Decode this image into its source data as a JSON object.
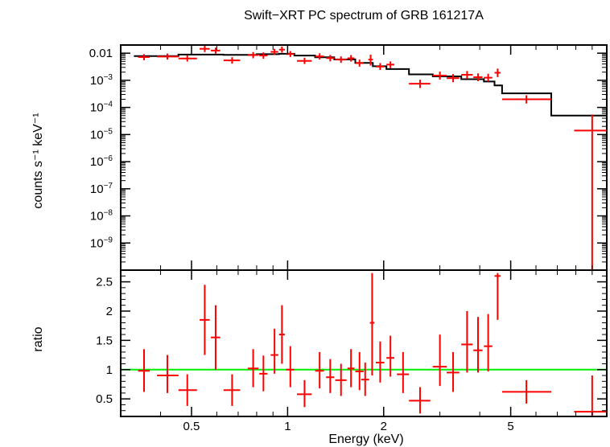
{
  "chart_data": [
    {
      "panel": "spectrum",
      "type": "scatter",
      "title": "Swift−XRT PC spectrum of GRB 161217A",
      "ylabel": "counts s⁻¹ keV⁻¹",
      "yscale": "log",
      "xscale": "log",
      "xlim": [
        0.3,
        10
      ],
      "ylim": [
        1e-10,
        0.02
      ],
      "y_ticks": [
        {
          "value": 0.01,
          "label": "0.01"
        },
        {
          "value": 0.001,
          "base": "10",
          "exp": "−3"
        },
        {
          "value": 0.0001,
          "base": "10",
          "exp": "−4"
        },
        {
          "value": 1e-05,
          "base": "10",
          "exp": "−5"
        },
        {
          "value": 1e-06,
          "base": "10",
          "exp": "−6"
        },
        {
          "value": 1e-07,
          "base": "10",
          "exp": "−7"
        },
        {
          "value": 1e-08,
          "base": "10",
          "exp": "−8"
        },
        {
          "value": 1e-09,
          "base": "10",
          "exp": "−9"
        }
      ],
      "series": [
        {
          "role": "data",
          "color": "#ff0000",
          "points": [
            {
              "x": 0.355,
              "xlo": 0.34,
              "xhi": 0.37,
              "y": 0.0072,
              "ylo": 0.0055,
              "yhi": 0.0092
            },
            {
              "x": 0.42,
              "xlo": 0.39,
              "xhi": 0.455,
              "y": 0.0075,
              "ylo": 0.0058,
              "yhi": 0.0097
            },
            {
              "x": 0.485,
              "xlo": 0.455,
              "xhi": 0.52,
              "y": 0.0064,
              "ylo": 0.0049,
              "yhi": 0.0083
            },
            {
              "x": 0.55,
              "xlo": 0.53,
              "xhi": 0.57,
              "y": 0.0145,
              "ylo": 0.011,
              "yhi": 0.019
            },
            {
              "x": 0.595,
              "xlo": 0.575,
              "xhi": 0.615,
              "y": 0.0125,
              "ylo": 0.0095,
              "yhi": 0.016
            },
            {
              "x": 0.67,
              "xlo": 0.63,
              "xhi": 0.71,
              "y": 0.0054,
              "ylo": 0.0041,
              "yhi": 0.0071
            },
            {
              "x": 0.78,
              "xlo": 0.75,
              "xhi": 0.81,
              "y": 0.0085,
              "ylo": 0.0065,
              "yhi": 0.011
            },
            {
              "x": 0.84,
              "xlo": 0.815,
              "xhi": 0.865,
              "y": 0.0082,
              "ylo": 0.0062,
              "yhi": 0.0107
            },
            {
              "x": 0.91,
              "xlo": 0.885,
              "xhi": 0.935,
              "y": 0.0112,
              "ylo": 0.0086,
              "yhi": 0.0145
            },
            {
              "x": 0.96,
              "xlo": 0.94,
              "xhi": 0.98,
              "y": 0.0135,
              "ylo": 0.0105,
              "yhi": 0.0175
            },
            {
              "x": 1.02,
              "xlo": 0.99,
              "xhi": 1.05,
              "y": 0.0093,
              "ylo": 0.0072,
              "yhi": 0.012
            },
            {
              "x": 1.13,
              "xlo": 1.07,
              "xhi": 1.19,
              "y": 0.0052,
              "ylo": 0.004,
              "yhi": 0.0068
            },
            {
              "x": 1.26,
              "xlo": 1.22,
              "xhi": 1.3,
              "y": 0.0076,
              "ylo": 0.0058,
              "yhi": 0.0099
            },
            {
              "x": 1.36,
              "xlo": 1.32,
              "xhi": 1.4,
              "y": 0.0066,
              "ylo": 0.005,
              "yhi": 0.0086
            },
            {
              "x": 1.47,
              "xlo": 1.41,
              "xhi": 1.53,
              "y": 0.0058,
              "ylo": 0.0044,
              "yhi": 0.0076
            },
            {
              "x": 1.58,
              "xlo": 1.54,
              "xhi": 1.62,
              "y": 0.0065,
              "ylo": 0.0049,
              "yhi": 0.0085
            },
            {
              "x": 1.68,
              "xlo": 1.63,
              "xhi": 1.73,
              "y": 0.0043,
              "ylo": 0.0032,
              "yhi": 0.0058
            },
            {
              "x": 1.82,
              "xlo": 1.79,
              "xhi": 1.85,
              "y": 0.0058,
              "ylo": 0.0035,
              "yhi": 0.0088
            },
            {
              "x": 1.95,
              "xlo": 1.89,
              "xhi": 2.01,
              "y": 0.0032,
              "ylo": 0.0024,
              "yhi": 0.0043
            },
            {
              "x": 2.1,
              "xlo": 2.04,
              "xhi": 2.16,
              "y": 0.0038,
              "ylo": 0.0028,
              "yhi": 0.005
            },
            {
              "x": 2.6,
              "xlo": 2.4,
              "xhi": 2.8,
              "y": 0.00075,
              "ylo": 0.00052,
              "yhi": 0.00105
            },
            {
              "x": 3.0,
              "xlo": 2.85,
              "xhi": 3.15,
              "y": 0.0015,
              "ylo": 0.00106,
              "yhi": 0.0021
            },
            {
              "x": 3.3,
              "xlo": 3.15,
              "xhi": 3.45,
              "y": 0.0012,
              "ylo": 0.00085,
              "yhi": 0.0017
            },
            {
              "x": 3.65,
              "xlo": 3.5,
              "xhi": 3.8,
              "y": 0.0016,
              "ylo": 0.00114,
              "yhi": 0.0022
            },
            {
              "x": 3.95,
              "xlo": 3.82,
              "xhi": 4.08,
              "y": 0.0013,
              "ylo": 0.00093,
              "yhi": 0.0018
            },
            {
              "x": 4.25,
              "xlo": 4.12,
              "xhi": 4.38,
              "y": 0.00125,
              "ylo": 0.0009,
              "yhi": 0.00175
            },
            {
              "x": 4.55,
              "xlo": 4.45,
              "xhi": 4.65,
              "y": 0.0019,
              "ylo": 0.00132,
              "yhi": 0.0027
            },
            {
              "x": 5.6,
              "xlo": 4.7,
              "xhi": 6.7,
              "y": 0.0002,
              "ylo": 0.00014,
              "yhi": 0.00028
            },
            {
              "x": 9.0,
              "xlo": 7.9,
              "xhi": 10.0,
              "y": 1.4e-05,
              "ylo": 1e-10,
              "yhi": 5.5e-05
            }
          ]
        },
        {
          "role": "model",
          "color": "#000000",
          "steps": [
            {
              "x0": 0.33,
              "x1": 0.455,
              "y": 0.0078
            },
            {
              "x0": 0.455,
              "x1": 0.63,
              "y": 0.0089
            },
            {
              "x0": 0.63,
              "x1": 0.8,
              "y": 0.0087
            },
            {
              "x0": 0.8,
              "x1": 0.94,
              "y": 0.0092
            },
            {
              "x0": 0.94,
              "x1": 1.05,
              "y": 0.0095
            },
            {
              "x0": 1.05,
              "x1": 1.22,
              "y": 0.0082
            },
            {
              "x0": 1.22,
              "x1": 1.4,
              "y": 0.0071
            },
            {
              "x0": 1.4,
              "x1": 1.63,
              "y": 0.0059
            },
            {
              "x0": 1.63,
              "x1": 1.85,
              "y": 0.0044
            },
            {
              "x0": 1.85,
              "x1": 2.04,
              "y": 0.0033
            },
            {
              "x0": 2.04,
              "x1": 2.4,
              "y": 0.0026
            },
            {
              "x0": 2.4,
              "x1": 2.85,
              "y": 0.00165
            },
            {
              "x0": 2.85,
              "x1": 3.5,
              "y": 0.0014
            },
            {
              "x0": 3.5,
              "x1": 4.12,
              "y": 0.0011
            },
            {
              "x0": 4.12,
              "x1": 4.45,
              "y": 0.0009
            },
            {
              "x0": 4.45,
              "x1": 4.7,
              "y": 0.00065
            },
            {
              "x0": 4.7,
              "x1": 6.7,
              "y": 0.00033
            },
            {
              "x0": 6.7,
              "x1": 10.0,
              "y": 5e-05
            }
          ]
        }
      ]
    },
    {
      "panel": "ratio",
      "type": "scatter",
      "xlabel": "Energy (keV)",
      "ylabel": "ratio",
      "xscale": "log",
      "xlim": [
        0.3,
        10
      ],
      "ylim": [
        0.2,
        2.7
      ],
      "x_ticks": [
        {
          "value": 0.5,
          "label": "0.5"
        },
        {
          "value": 1,
          "label": "1"
        },
        {
          "value": 2,
          "label": "2"
        },
        {
          "value": 5,
          "label": "5"
        }
      ],
      "y_ticks": [
        {
          "value": 0.5,
          "label": "0.5"
        },
        {
          "value": 1,
          "label": "1"
        },
        {
          "value": 1.5,
          "label": "1.5"
        },
        {
          "value": 2,
          "label": "2"
        },
        {
          "value": 2.5,
          "label": "2.5"
        }
      ],
      "reference_line": {
        "y": 1,
        "color": "#00ee00"
      },
      "series": [
        {
          "role": "ratio",
          "color": "#ff0000",
          "points": [
            {
              "x": 0.355,
              "xlo": 0.34,
              "xhi": 0.37,
              "y": 0.98,
              "ylo": 0.62,
              "yhi": 1.35
            },
            {
              "x": 0.42,
              "xlo": 0.39,
              "xhi": 0.455,
              "y": 0.9,
              "ylo": 0.6,
              "yhi": 1.25
            },
            {
              "x": 0.485,
              "xlo": 0.455,
              "xhi": 0.52,
              "y": 0.65,
              "ylo": 0.38,
              "yhi": 0.92
            },
            {
              "x": 0.55,
              "xlo": 0.53,
              "xhi": 0.57,
              "y": 1.85,
              "ylo": 1.25,
              "yhi": 2.45
            },
            {
              "x": 0.595,
              "xlo": 0.575,
              "xhi": 0.615,
              "y": 1.55,
              "ylo": 1.0,
              "yhi": 2.1
            },
            {
              "x": 0.67,
              "xlo": 0.63,
              "xhi": 0.71,
              "y": 0.65,
              "ylo": 0.38,
              "yhi": 0.92
            },
            {
              "x": 0.78,
              "xlo": 0.75,
              "xhi": 0.81,
              "y": 1.02,
              "ylo": 0.7,
              "yhi": 1.35
            },
            {
              "x": 0.84,
              "xlo": 0.815,
              "xhi": 0.865,
              "y": 0.93,
              "ylo": 0.63,
              "yhi": 1.24
            },
            {
              "x": 0.91,
              "xlo": 0.885,
              "xhi": 0.935,
              "y": 1.25,
              "ylo": 0.93,
              "yhi": 1.7
            },
            {
              "x": 0.96,
              "xlo": 0.94,
              "xhi": 0.98,
              "y": 1.6,
              "ylo": 1.1,
              "yhi": 2.1
            },
            {
              "x": 1.02,
              "xlo": 0.99,
              "xhi": 1.05,
              "y": 1.0,
              "ylo": 0.7,
              "yhi": 1.4
            },
            {
              "x": 1.13,
              "xlo": 1.07,
              "xhi": 1.19,
              "y": 0.58,
              "ylo": 0.36,
              "yhi": 0.82
            },
            {
              "x": 1.26,
              "xlo": 1.22,
              "xhi": 1.3,
              "y": 0.98,
              "ylo": 0.68,
              "yhi": 1.3
            },
            {
              "x": 1.36,
              "xlo": 1.32,
              "xhi": 1.4,
              "y": 0.87,
              "ylo": 0.6,
              "yhi": 1.18
            },
            {
              "x": 1.47,
              "xlo": 1.41,
              "xhi": 1.53,
              "y": 0.82,
              "ylo": 0.55,
              "yhi": 1.1
            },
            {
              "x": 1.58,
              "xlo": 1.54,
              "xhi": 1.62,
              "y": 1.02,
              "ylo": 0.7,
              "yhi": 1.35
            },
            {
              "x": 1.68,
              "xlo": 1.63,
              "xhi": 1.73,
              "y": 0.97,
              "ylo": 0.65,
              "yhi": 1.3
            },
            {
              "x": 1.75,
              "xlo": 1.7,
              "xhi": 1.8,
              "y": 0.83,
              "ylo": 0.55,
              "yhi": 1.12
            },
            {
              "x": 1.84,
              "xlo": 1.81,
              "xhi": 1.87,
              "y": 1.8,
              "ylo": 0.9,
              "yhi": 2.65
            },
            {
              "x": 1.95,
              "xlo": 1.89,
              "xhi": 2.01,
              "y": 1.12,
              "ylo": 0.78,
              "yhi": 1.48
            },
            {
              "x": 2.1,
              "xlo": 2.04,
              "xhi": 2.16,
              "y": 1.2,
              "ylo": 0.88,
              "yhi": 1.58
            },
            {
              "x": 2.3,
              "xlo": 2.2,
              "xhi": 2.4,
              "y": 0.92,
              "ylo": 0.6,
              "yhi": 1.3
            },
            {
              "x": 2.6,
              "xlo": 2.4,
              "xhi": 2.8,
              "y": 0.47,
              "ylo": 0.25,
              "yhi": 0.7
            },
            {
              "x": 3.0,
              "xlo": 2.85,
              "xhi": 3.15,
              "y": 1.05,
              "ylo": 0.72,
              "yhi": 1.6
            },
            {
              "x": 3.3,
              "xlo": 3.15,
              "xhi": 3.45,
              "y": 0.95,
              "ylo": 0.62,
              "yhi": 1.3
            },
            {
              "x": 3.65,
              "xlo": 3.5,
              "xhi": 3.8,
              "y": 1.43,
              "ylo": 0.95,
              "yhi": 2.0
            },
            {
              "x": 3.95,
              "xlo": 3.82,
              "xhi": 4.08,
              "y": 1.33,
              "ylo": 0.95,
              "yhi": 1.9
            },
            {
              "x": 4.25,
              "xlo": 4.12,
              "xhi": 4.38,
              "y": 1.4,
              "ylo": 0.97,
              "yhi": 1.95
            },
            {
              "x": 4.55,
              "xlo": 4.45,
              "xhi": 4.65,
              "y": 2.6,
              "ylo": 1.85,
              "yhi": 2.65
            },
            {
              "x": 5.6,
              "xlo": 4.7,
              "xhi": 6.7,
              "y": 0.62,
              "ylo": 0.42,
              "yhi": 0.82
            },
            {
              "x": 9.0,
              "xlo": 7.9,
              "xhi": 10.0,
              "y": 0.28,
              "ylo": 0.2,
              "yhi": 0.9
            }
          ]
        }
      ]
    }
  ]
}
